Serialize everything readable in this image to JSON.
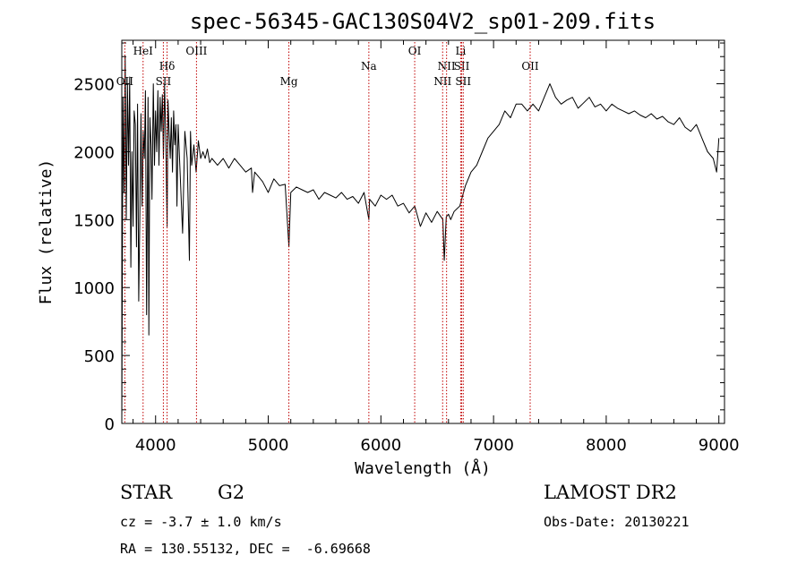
{
  "chart_data": {
    "type": "line",
    "title": "spec-56345-GAC130S04V2_sp01-209.fits",
    "xlabel": "Wavelength (Å)",
    "ylabel": "Flux (relative)",
    "xlim": [
      3700,
      9050
    ],
    "ylim": [
      0,
      2820
    ],
    "xticks": [
      4000,
      5000,
      6000,
      7000,
      8000,
      9000
    ],
    "yticks": [
      0,
      500,
      1000,
      1500,
      2000,
      2500
    ],
    "grid": false,
    "series": [
      {
        "color": "#000000",
        "x": [
          3700,
          3710,
          3720,
          3730,
          3740,
          3750,
          3760,
          3770,
          3780,
          3790,
          3800,
          3810,
          3820,
          3830,
          3840,
          3850,
          3860,
          3870,
          3880,
          3890,
          3900,
          3910,
          3920,
          3933,
          3940,
          3950,
          3960,
          3968,
          3980,
          3990,
          4000,
          4010,
          4020,
          4030,
          4040,
          4050,
          4060,
          4070,
          4080,
          4090,
          4102,
          4110,
          4120,
          4130,
          4140,
          4150,
          4160,
          4170,
          4180,
          4190,
          4200,
          4220,
          4240,
          4260,
          4280,
          4300,
          4310,
          4320,
          4340,
          4360,
          4380,
          4400,
          4420,
          4440,
          4460,
          4480,
          4500,
          4550,
          4600,
          4650,
          4700,
          4750,
          4800,
          4850,
          4861,
          4880,
          4900,
          4950,
          5000,
          5050,
          5100,
          5150,
          5183,
          5200,
          5250,
          5300,
          5350,
          5400,
          5450,
          5500,
          5550,
          5600,
          5650,
          5700,
          5750,
          5800,
          5850,
          5893,
          5900,
          5950,
          6000,
          6050,
          6100,
          6150,
          6200,
          6250,
          6300,
          6350,
          6400,
          6450,
          6500,
          6550,
          6563,
          6580,
          6600,
          6620,
          6650,
          6700,
          6750,
          6800,
          6850,
          6900,
          6950,
          7000,
          7050,
          7100,
          7150,
          7200,
          7250,
          7300,
          7350,
          7400,
          7450,
          7500,
          7550,
          7600,
          7650,
          7700,
          7750,
          7800,
          7850,
          7900,
          7950,
          8000,
          8050,
          8100,
          8150,
          8200,
          8250,
          8300,
          8350,
          8400,
          8450,
          8500,
          8550,
          8600,
          8650,
          8700,
          8750,
          8800,
          8850,
          8900,
          8950,
          8980,
          9000
        ],
        "y": [
          0,
          2400,
          1700,
          2700,
          1500,
          2500,
          1900,
          2550,
          1150,
          2000,
          1450,
          2300,
          2200,
          1300,
          2350,
          900,
          1500,
          2280,
          1600,
          2150,
          1950,
          2450,
          800,
          2400,
          650,
          2250,
          2050,
          1650,
          2500,
          1900,
          2300,
          2000,
          2450,
          1900,
          2400,
          2150,
          2420,
          1950,
          2500,
          2100,
          1450,
          2380,
          2150,
          1950,
          2250,
          1850,
          2300,
          2050,
          2200,
          1600,
          2200,
          1800,
          1400,
          2150,
          1950,
          1200,
          2150,
          1900,
          2050,
          1850,
          2080,
          1950,
          2000,
          1950,
          2020,
          1920,
          1950,
          1900,
          1950,
          1880,
          1950,
          1900,
          1850,
          1880,
          1700,
          1850,
          1830,
          1780,
          1700,
          1800,
          1750,
          1760,
          1300,
          1700,
          1740,
          1720,
          1700,
          1720,
          1650,
          1700,
          1680,
          1660,
          1700,
          1650,
          1670,
          1620,
          1700,
          1500,
          1650,
          1600,
          1680,
          1650,
          1680,
          1600,
          1620,
          1550,
          1600,
          1450,
          1550,
          1480,
          1560,
          1500,
          1200,
          1520,
          1540,
          1500,
          1560,
          1600,
          1750,
          1850,
          1900,
          2000,
          2100,
          2150,
          2200,
          2300,
          2250,
          2350,
          2350,
          2300,
          2350,
          2300,
          2400,
          2500,
          2400,
          2350,
          2380,
          2400,
          2320,
          2360,
          2400,
          2330,
          2350,
          2300,
          2350,
          2320,
          2300,
          2280,
          2300,
          2270,
          2250,
          2280,
          2240,
          2260,
          2220,
          2200,
          2250,
          2180,
          2150,
          2200,
          2100,
          2000,
          1950,
          1850,
          2100
        ]
      }
    ],
    "lines": [
      {
        "label": "OII",
        "x": 3727,
        "row": 2
      },
      {
        "label": "HeI",
        "x": 3889,
        "row": 0
      },
      {
        "label": "SII",
        "x": 4069,
        "row": 2
      },
      {
        "label": "Hδ",
        "x": 4102,
        "row": 1
      },
      {
        "label": "OIII",
        "x": 4363,
        "row": 0
      },
      {
        "label": "Mg",
        "x": 5183,
        "row": 2
      },
      {
        "label": "Na",
        "x": 5893,
        "row": 1
      },
      {
        "label": "OI",
        "x": 6300,
        "row": 0
      },
      {
        "label": "NII",
        "x": 6548,
        "row": 2
      },
      {
        "label": "NII",
        "x": 6583,
        "row": 1
      },
      {
        "label": "Li",
        "x": 6708,
        "row": 0
      },
      {
        "label": "SII",
        "x": 6717,
        "row": 1
      },
      {
        "label": "SII",
        "x": 6731,
        "row": 2
      },
      {
        "label": "OII",
        "x": 7325,
        "row": 1
      }
    ]
  },
  "info": {
    "object_type": "STAR",
    "subclass": "G2",
    "survey": "LAMOST DR2",
    "cz": "cz = -3.7 ± 1.0 km/s",
    "obs_date": "Obs-Date: 20130221",
    "coords": "RA = 130.55132, DEC =  -6.69668"
  }
}
